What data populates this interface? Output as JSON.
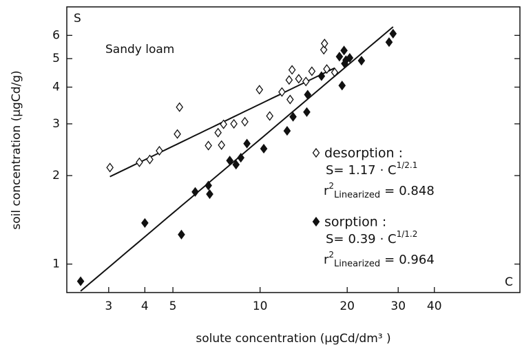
{
  "chart_data": {
    "type": "scatter",
    "annotation": "Sandy loam",
    "y_axis_letter": "S",
    "x_axis_letter": "C",
    "xlabel": "solute concentration (µgCd/dm³ )",
    "ylabel": "soil concentration  (µgCd/g)",
    "log_x": true,
    "log_y": true,
    "xlim": [
      2.15,
      79
    ],
    "ylim": [
      0.8,
      7.5
    ],
    "xticks": [
      3,
      4,
      5,
      10,
      20,
      30,
      40
    ],
    "yticks": [
      1,
      2,
      3,
      4,
      5,
      6
    ],
    "series": [
      {
        "name": "desorption :",
        "marker": "open-diamond",
        "color": "#111111",
        "x": [
          3.03,
          3.83,
          4.16,
          4.49,
          5.18,
          5.27,
          6.63,
          7.16,
          7.36,
          7.48,
          8.12,
          8.86,
          9.95,
          10.8,
          11.9,
          12.6,
          12.7,
          12.9,
          13.6,
          14.4,
          15.1,
          16.6,
          16.7,
          17.0,
          18.1
        ],
        "values": [
          2.13,
          2.22,
          2.27,
          2.43,
          2.77,
          3.42,
          2.53,
          2.8,
          2.54,
          2.99,
          3.0,
          3.05,
          3.92,
          3.19,
          3.85,
          4.23,
          3.63,
          4.58,
          4.27,
          4.18,
          4.53,
          5.36,
          5.63,
          4.61,
          4.49
        ],
        "fit": {
          "lhs": "S=",
          "coefficient": 1.17,
          "mid": "· C",
          "exp_prefix": "1/",
          "exp_denominator": 2.1,
          "r": "r",
          "r_sup": "2",
          "r_sub": "Linearized",
          "r_eq": "=",
          "r2": 0.848
        }
      },
      {
        "name": "sorption :",
        "marker": "filled-diamond",
        "color": "#111111",
        "x": [
          2.4,
          4.0,
          5.35,
          5.97,
          6.63,
          6.7,
          7.86,
          8.26,
          8.58,
          9.01,
          10.3,
          12.4,
          13.0,
          14.5,
          14.6,
          16.3,
          18.8,
          19.2,
          19.5,
          19.6,
          19.8,
          20.4,
          22.4,
          27.9,
          28.8
        ],
        "values": [
          0.874,
          1.38,
          1.26,
          1.76,
          1.85,
          1.73,
          2.25,
          2.18,
          2.3,
          2.57,
          2.47,
          2.84,
          3.17,
          3.29,
          3.77,
          4.36,
          5.08,
          4.05,
          5.33,
          4.81,
          4.94,
          5.03,
          4.92,
          5.69,
          6.08
        ],
        "fit": {
          "lhs": "S=",
          "coefficient": 0.39,
          "mid": "· C",
          "exp_prefix": "1/",
          "exp_denominator": 1.2,
          "r": "r",
          "r_sup": "2",
          "r_sub": "Linearized",
          "r_eq": "=",
          "r2": 0.964
        }
      }
    ]
  }
}
